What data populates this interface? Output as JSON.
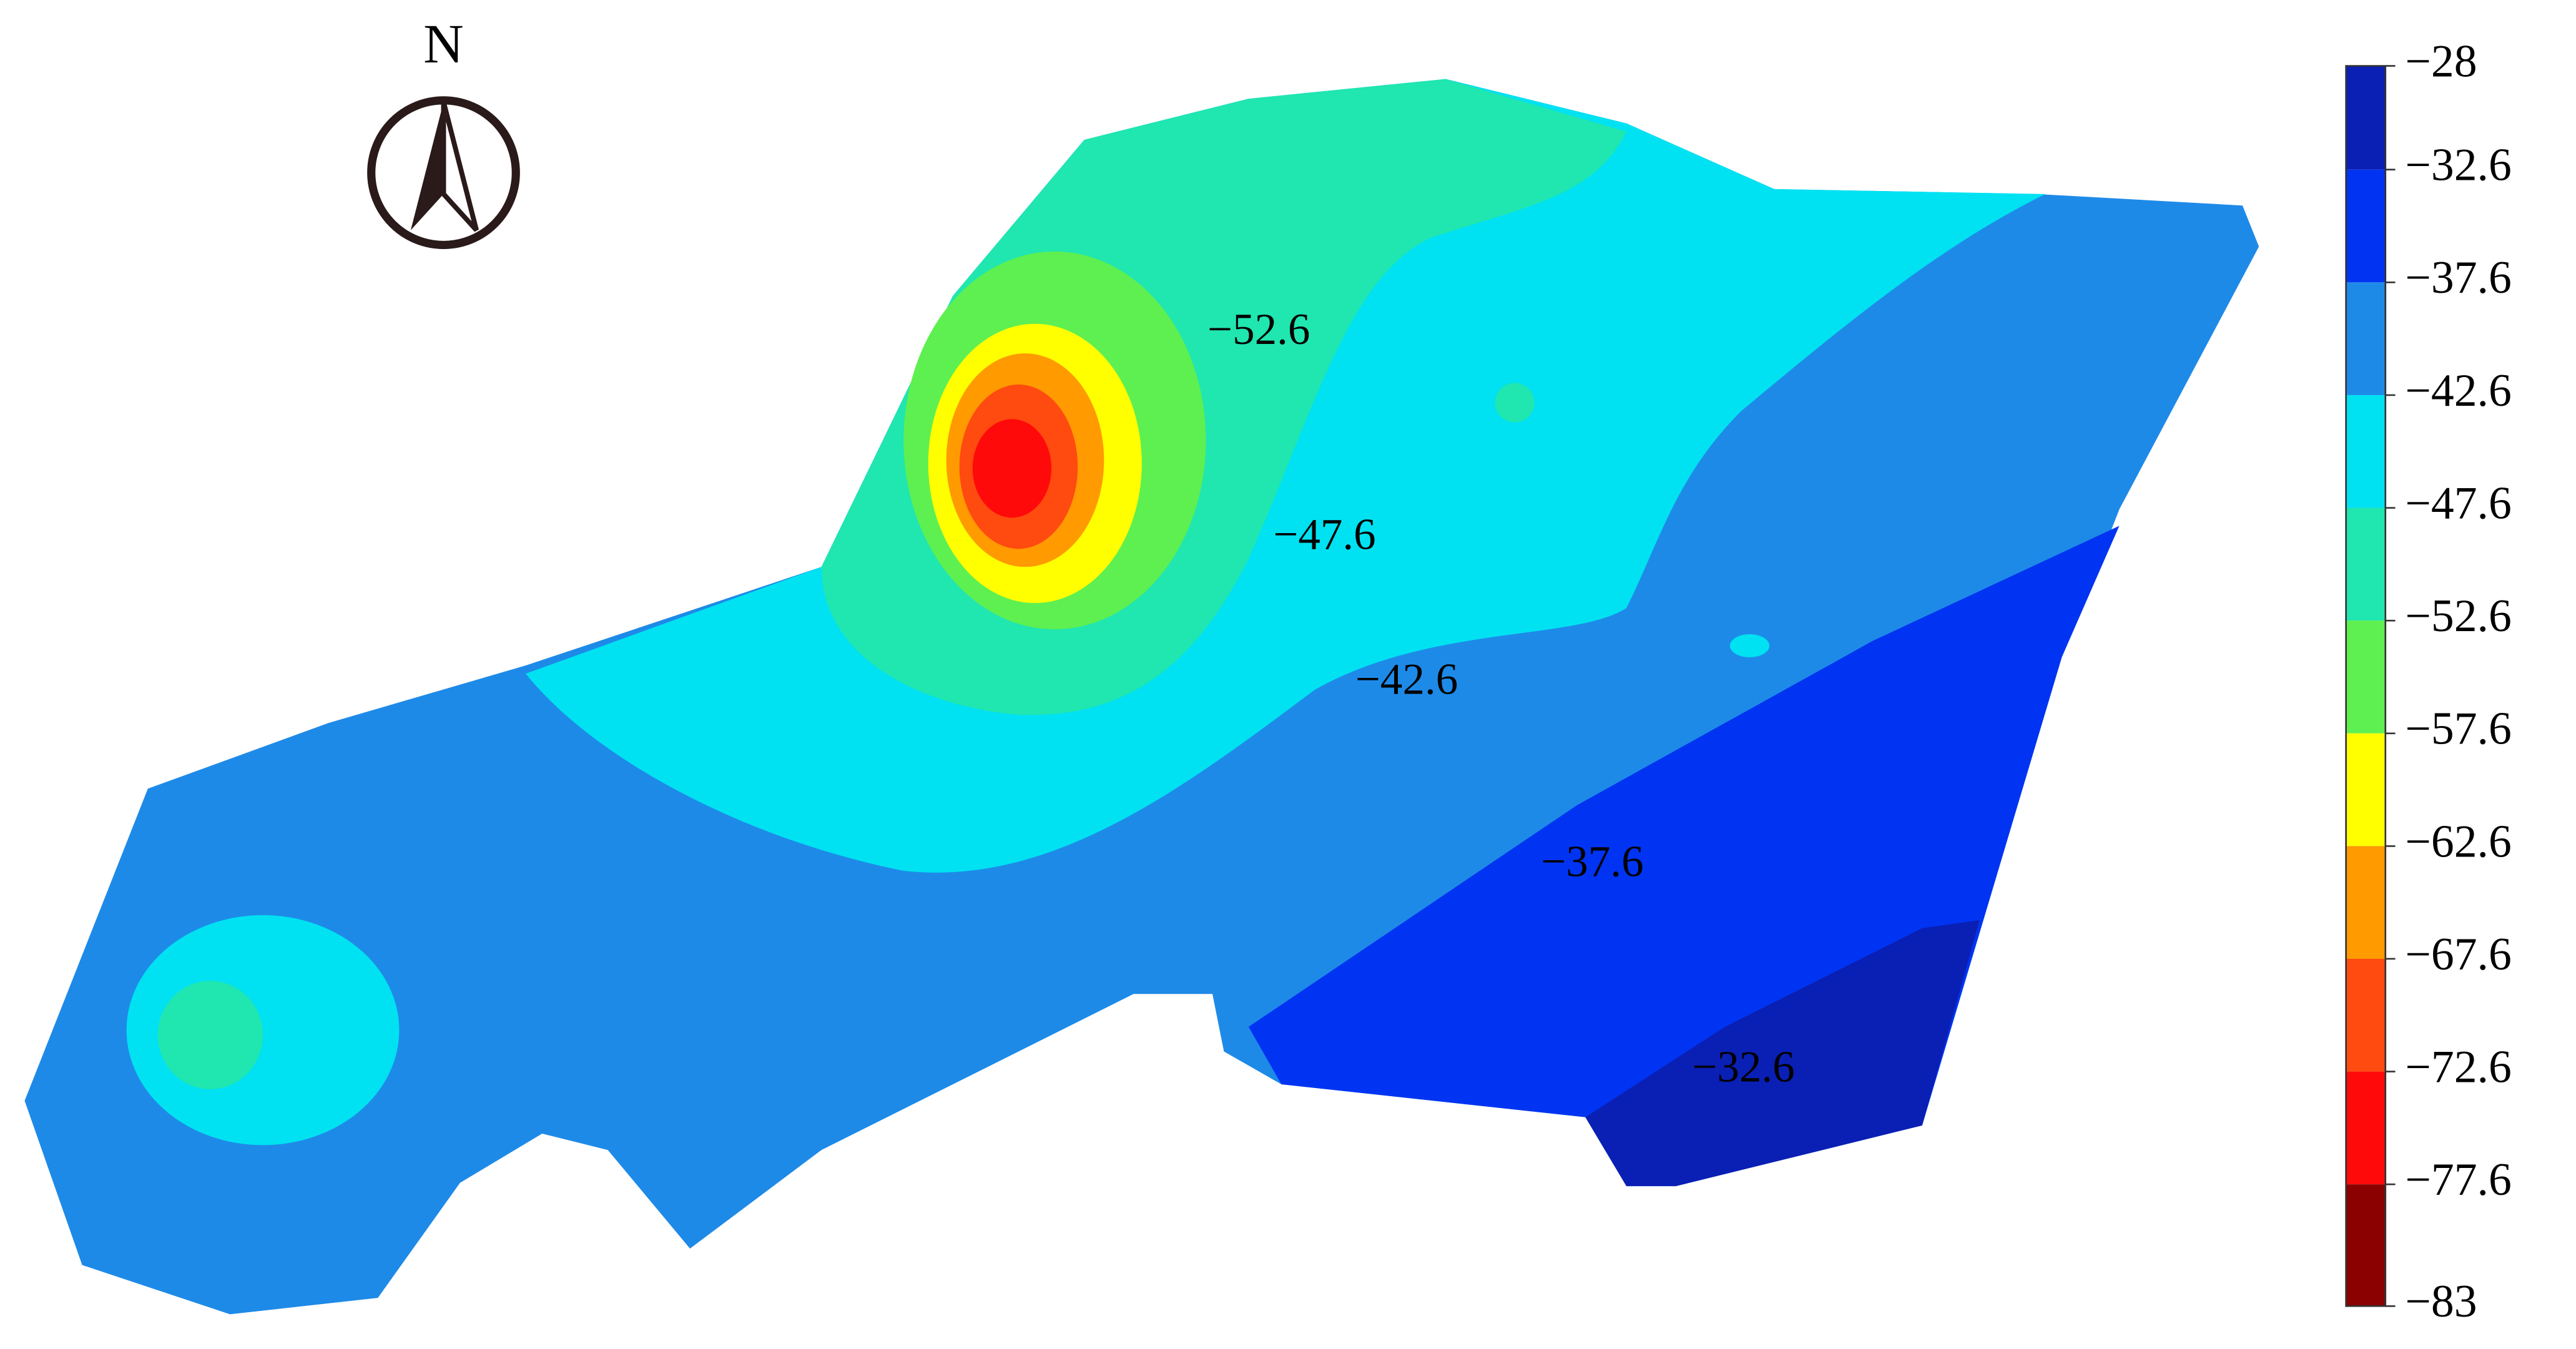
{
  "north_label": "N",
  "contour_labels": [
    "−52.6",
    "−47.6",
    "−42.6",
    "−37.6",
    "−32.6"
  ],
  "colorbar": {
    "lim": [
      -83,
      -28
    ],
    "ticks": [
      {
        "value": -28,
        "label": "−28"
      },
      {
        "value": -32.6,
        "label": "−32.6"
      },
      {
        "value": -37.6,
        "label": "−37.6"
      },
      {
        "value": -42.6,
        "label": "−42.6"
      },
      {
        "value": -47.6,
        "label": "−47.6"
      },
      {
        "value": -52.6,
        "label": "−52.6"
      },
      {
        "value": -57.6,
        "label": "−57.6"
      },
      {
        "value": -62.6,
        "label": "−62.6"
      },
      {
        "value": -67.6,
        "label": "−67.6"
      },
      {
        "value": -72.6,
        "label": "−72.6"
      },
      {
        "value": -77.6,
        "label": "−77.6"
      },
      {
        "value": -83,
        "label": "−83"
      }
    ],
    "colors": [
      "#0a1fb4",
      "#0034f2",
      "#1e8ae8",
      "#00e2f2",
      "#20e6b0",
      "#5ef050",
      "#ffff00",
      "#ff9a00",
      "#ff4a10",
      "#ff0a0a",
      "#8b0000"
    ]
  }
}
